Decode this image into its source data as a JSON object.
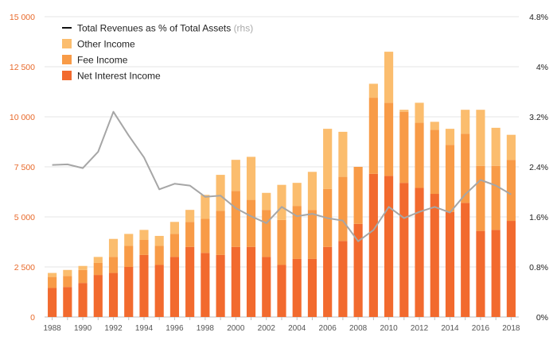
{
  "chart_data": {
    "type": "bar",
    "stacked": true,
    "categories": [
      "1988",
      "1989",
      "1990",
      "1991",
      "1992",
      "1993",
      "1994",
      "1995",
      "1996",
      "1997",
      "1998",
      "1999",
      "2000",
      "2001",
      "2002",
      "2003",
      "2004",
      "2005",
      "2006",
      "2007",
      "2008",
      "2009",
      "2010",
      "2011",
      "2012",
      "2013",
      "2014",
      "2015",
      "2016",
      "2017",
      "2018"
    ],
    "x_tick_labels": [
      "1988",
      "1990",
      "1992",
      "1994",
      "1996",
      "1998",
      "2000",
      "2002",
      "2004",
      "2006",
      "2008",
      "2010",
      "2012",
      "2014",
      "2016",
      "2018"
    ],
    "series": [
      {
        "name": "Net Interest Income",
        "color": "#f26a2e",
        "values": [
          1450,
          1500,
          1700,
          2100,
          2200,
          2500,
          3100,
          2600,
          3000,
          3500,
          3200,
          3100,
          3500,
          3500,
          3000,
          2600,
          2900,
          2900,
          3500,
          3800,
          4650,
          7150,
          7050,
          6700,
          6450,
          6150,
          5250,
          5700,
          4300,
          4350,
          4800
        ]
      },
      {
        "name": "Fee Income",
        "color": "#f89b47",
        "values": [
          550,
          550,
          650,
          600,
          800,
          1050,
          750,
          950,
          1150,
          1250,
          1700,
          2200,
          2800,
          2350,
          2350,
          2250,
          2650,
          2450,
          2900,
          3200,
          2850,
          3800,
          3650,
          3550,
          3250,
          3200,
          3350,
          3450,
          3250,
          3200,
          3050
        ]
      },
      {
        "name": "Other Income",
        "color": "#fbbd6e",
        "values": [
          200,
          300,
          200,
          300,
          900,
          600,
          500,
          500,
          600,
          600,
          1200,
          1800,
          1550,
          2150,
          850,
          1750,
          1150,
          1900,
          3000,
          2250,
          0,
          700,
          2550,
          100,
          1000,
          400,
          800,
          1200,
          2800,
          1900,
          1250
        ]
      }
    ],
    "line_series": {
      "name": "Total Revenues as % of Total Assets",
      "axis": "right",
      "color": "#a6a6a6",
      "values": [
        2.43,
        2.44,
        2.38,
        2.64,
        3.28,
        2.9,
        2.55,
        2.04,
        2.13,
        2.1,
        1.92,
        1.94,
        1.74,
        1.61,
        1.5,
        1.76,
        1.61,
        1.65,
        1.58,
        1.54,
        1.21,
        1.39,
        1.76,
        1.58,
        1.68,
        1.76,
        1.67,
        1.96,
        2.19,
        2.1,
        1.96
      ]
    },
    "y_left": {
      "ticks": [
        0,
        2500,
        5000,
        7500,
        10000,
        12500,
        15000
      ],
      "tick_labels": [
        "0",
        "2 500",
        "5 000",
        "7 500",
        "10 000",
        "12 500",
        "15 000"
      ],
      "ylim": [
        0,
        15000
      ],
      "color": "#e8692a"
    },
    "y_right": {
      "ticks": [
        0,
        0.8,
        1.6,
        2.4,
        3.2,
        4.0,
        4.8
      ],
      "tick_labels": [
        "0%",
        "0.8%",
        "1.6%",
        "2.4%",
        "3.2%",
        "4%",
        "4.8%"
      ],
      "ylim": [
        0,
        4.8
      ]
    },
    "legend": {
      "placement": "top-left",
      "line_label": "Total Revenues as % of Total Assets",
      "line_suffix": "(rhs)",
      "entries": [
        {
          "label": "Other Income",
          "color": "#fbbd6e"
        },
        {
          "label": "Fee Income",
          "color": "#f89b47"
        },
        {
          "label": "Net Interest Income",
          "color": "#f26a2e"
        }
      ]
    },
    "legend_line_color": "#111111",
    "grid": true,
    "title": "",
    "xlabel": "",
    "ylabel": ""
  }
}
